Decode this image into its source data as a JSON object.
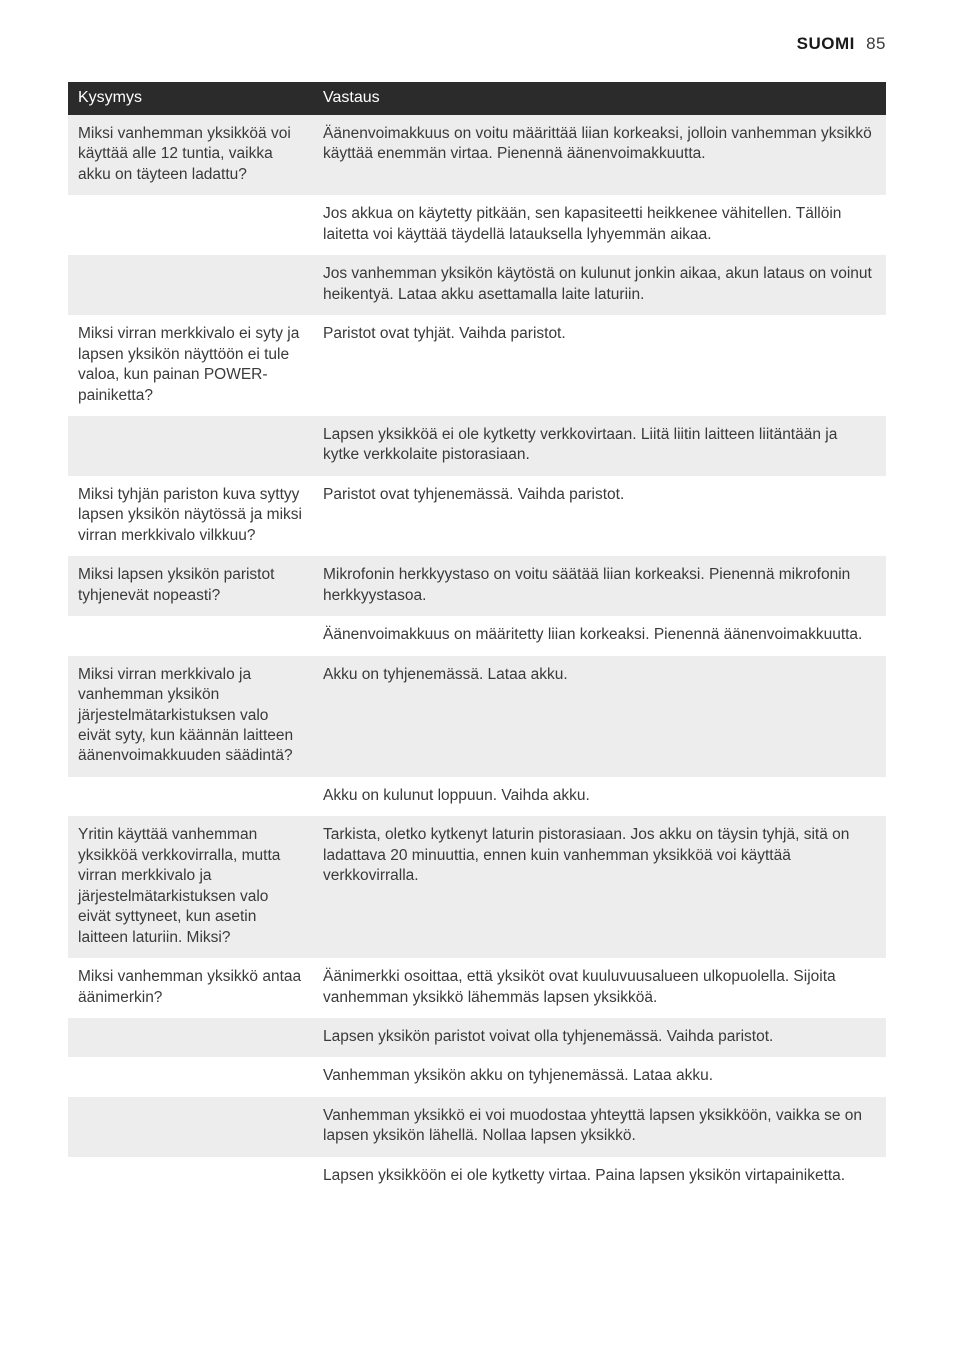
{
  "header": {
    "language": "SUOMI",
    "page_number": "85"
  },
  "table": {
    "columns": {
      "question": "Kysymys",
      "answer": "Vastaus"
    },
    "rows": [
      {
        "shade": true,
        "q": "Miksi vanhemman yksikköä voi käyttää alle 12 tuntia, vaikka akku on täyteen ladattu?",
        "a": "Äänenvoimakkuus on voitu määrittää liian korkeaksi, jolloin vanhemman yksikkö käyttää enemmän virtaa. Pienennä äänenvoimakkuutta."
      },
      {
        "shade": false,
        "q": "",
        "a": "Jos akkua on käytetty pitkään, sen kapasiteetti heikkenee vähitellen. Tällöin laitetta voi käyttää täydellä latauksella lyhyemmän aikaa."
      },
      {
        "shade": true,
        "q": "",
        "a": "Jos vanhemman yksikön käytöstä on kulunut jonkin aikaa, akun lataus on voinut heikentyä. Lataa akku asettamalla laite laturiin."
      },
      {
        "shade": false,
        "q": "Miksi virran merkkivalo ei syty ja lapsen yksikön näyttöön ei tule valoa, kun painan POWER-painiketta?",
        "a": "Paristot ovat tyhjät. Vaihda paristot."
      },
      {
        "shade": true,
        "q": "",
        "a": "Lapsen yksikköä ei ole kytketty verkkovirtaan. Liitä liitin laitteen liitäntään ja kytke verkkolaite pistorasiaan."
      },
      {
        "shade": false,
        "q": "Miksi tyhjän pariston kuva syttyy lapsen yksikön näytössä ja miksi virran merkkivalo vilkkuu?",
        "a": "Paristot ovat tyhjenemässä. Vaihda paristot."
      },
      {
        "shade": true,
        "q": "Miksi lapsen yksikön paristot tyhjenevät nopeasti?",
        "a": "Mikrofonin herkkyystaso on voitu säätää liian korkeaksi. Pienennä mikrofonin herkkyystasoa."
      },
      {
        "shade": false,
        "q": "",
        "a": "Äänenvoimakkuus on määritetty liian korkeaksi. Pienennä äänenvoimakkuutta."
      },
      {
        "shade": true,
        "q": "Miksi virran merkkivalo ja vanhemman yksikön järjestelmätarkistuksen valo eivät syty, kun käännän laitteen äänenvoimakkuuden säädintä?",
        "a": "Akku on tyhjenemässä. Lataa akku."
      },
      {
        "shade": false,
        "q": "",
        "a": "Akku on kulunut loppuun. Vaihda akku."
      },
      {
        "shade": true,
        "q": "Yritin käyttää vanhemman yksikköä verkkovirralla, mutta virran merkkivalo ja järjestelmätarkistuksen valo eivät syttyneet, kun asetin laitteen laturiin. Miksi?",
        "a": "Tarkista, oletko kytkenyt laturin pistorasiaan. Jos akku on täysin tyhjä, sitä on ladattava 20 minuuttia, ennen kuin vanhemman yksikköä voi käyttää verkkovirralla."
      },
      {
        "shade": false,
        "q": "Miksi vanhemman yksikkö antaa äänimerkin?",
        "a": "Äänimerkki osoittaa, että yksiköt ovat kuuluvuusalueen ulkopuolella. Sijoita vanhemman yksikkö lähemmäs lapsen yksikköä."
      },
      {
        "shade": true,
        "q": "",
        "a": "Lapsen yksikön paristot voivat olla tyhjenemässä. Vaihda paristot."
      },
      {
        "shade": false,
        "q": "",
        "a": "Vanhemman yksikön akku on tyhjenemässä. Lataa akku."
      },
      {
        "shade": true,
        "q": "",
        "a": "Vanhemman yksikkö ei voi muodostaa yhteyttä lapsen yksikköön, vaikka se on lapsen yksikön lähellä. Nollaa lapsen yksikkö."
      },
      {
        "shade": false,
        "q": "",
        "a": "Lapsen yksikköön ei ole kytketty virtaa. Paina lapsen yksikön virtapainiketta."
      }
    ]
  }
}
